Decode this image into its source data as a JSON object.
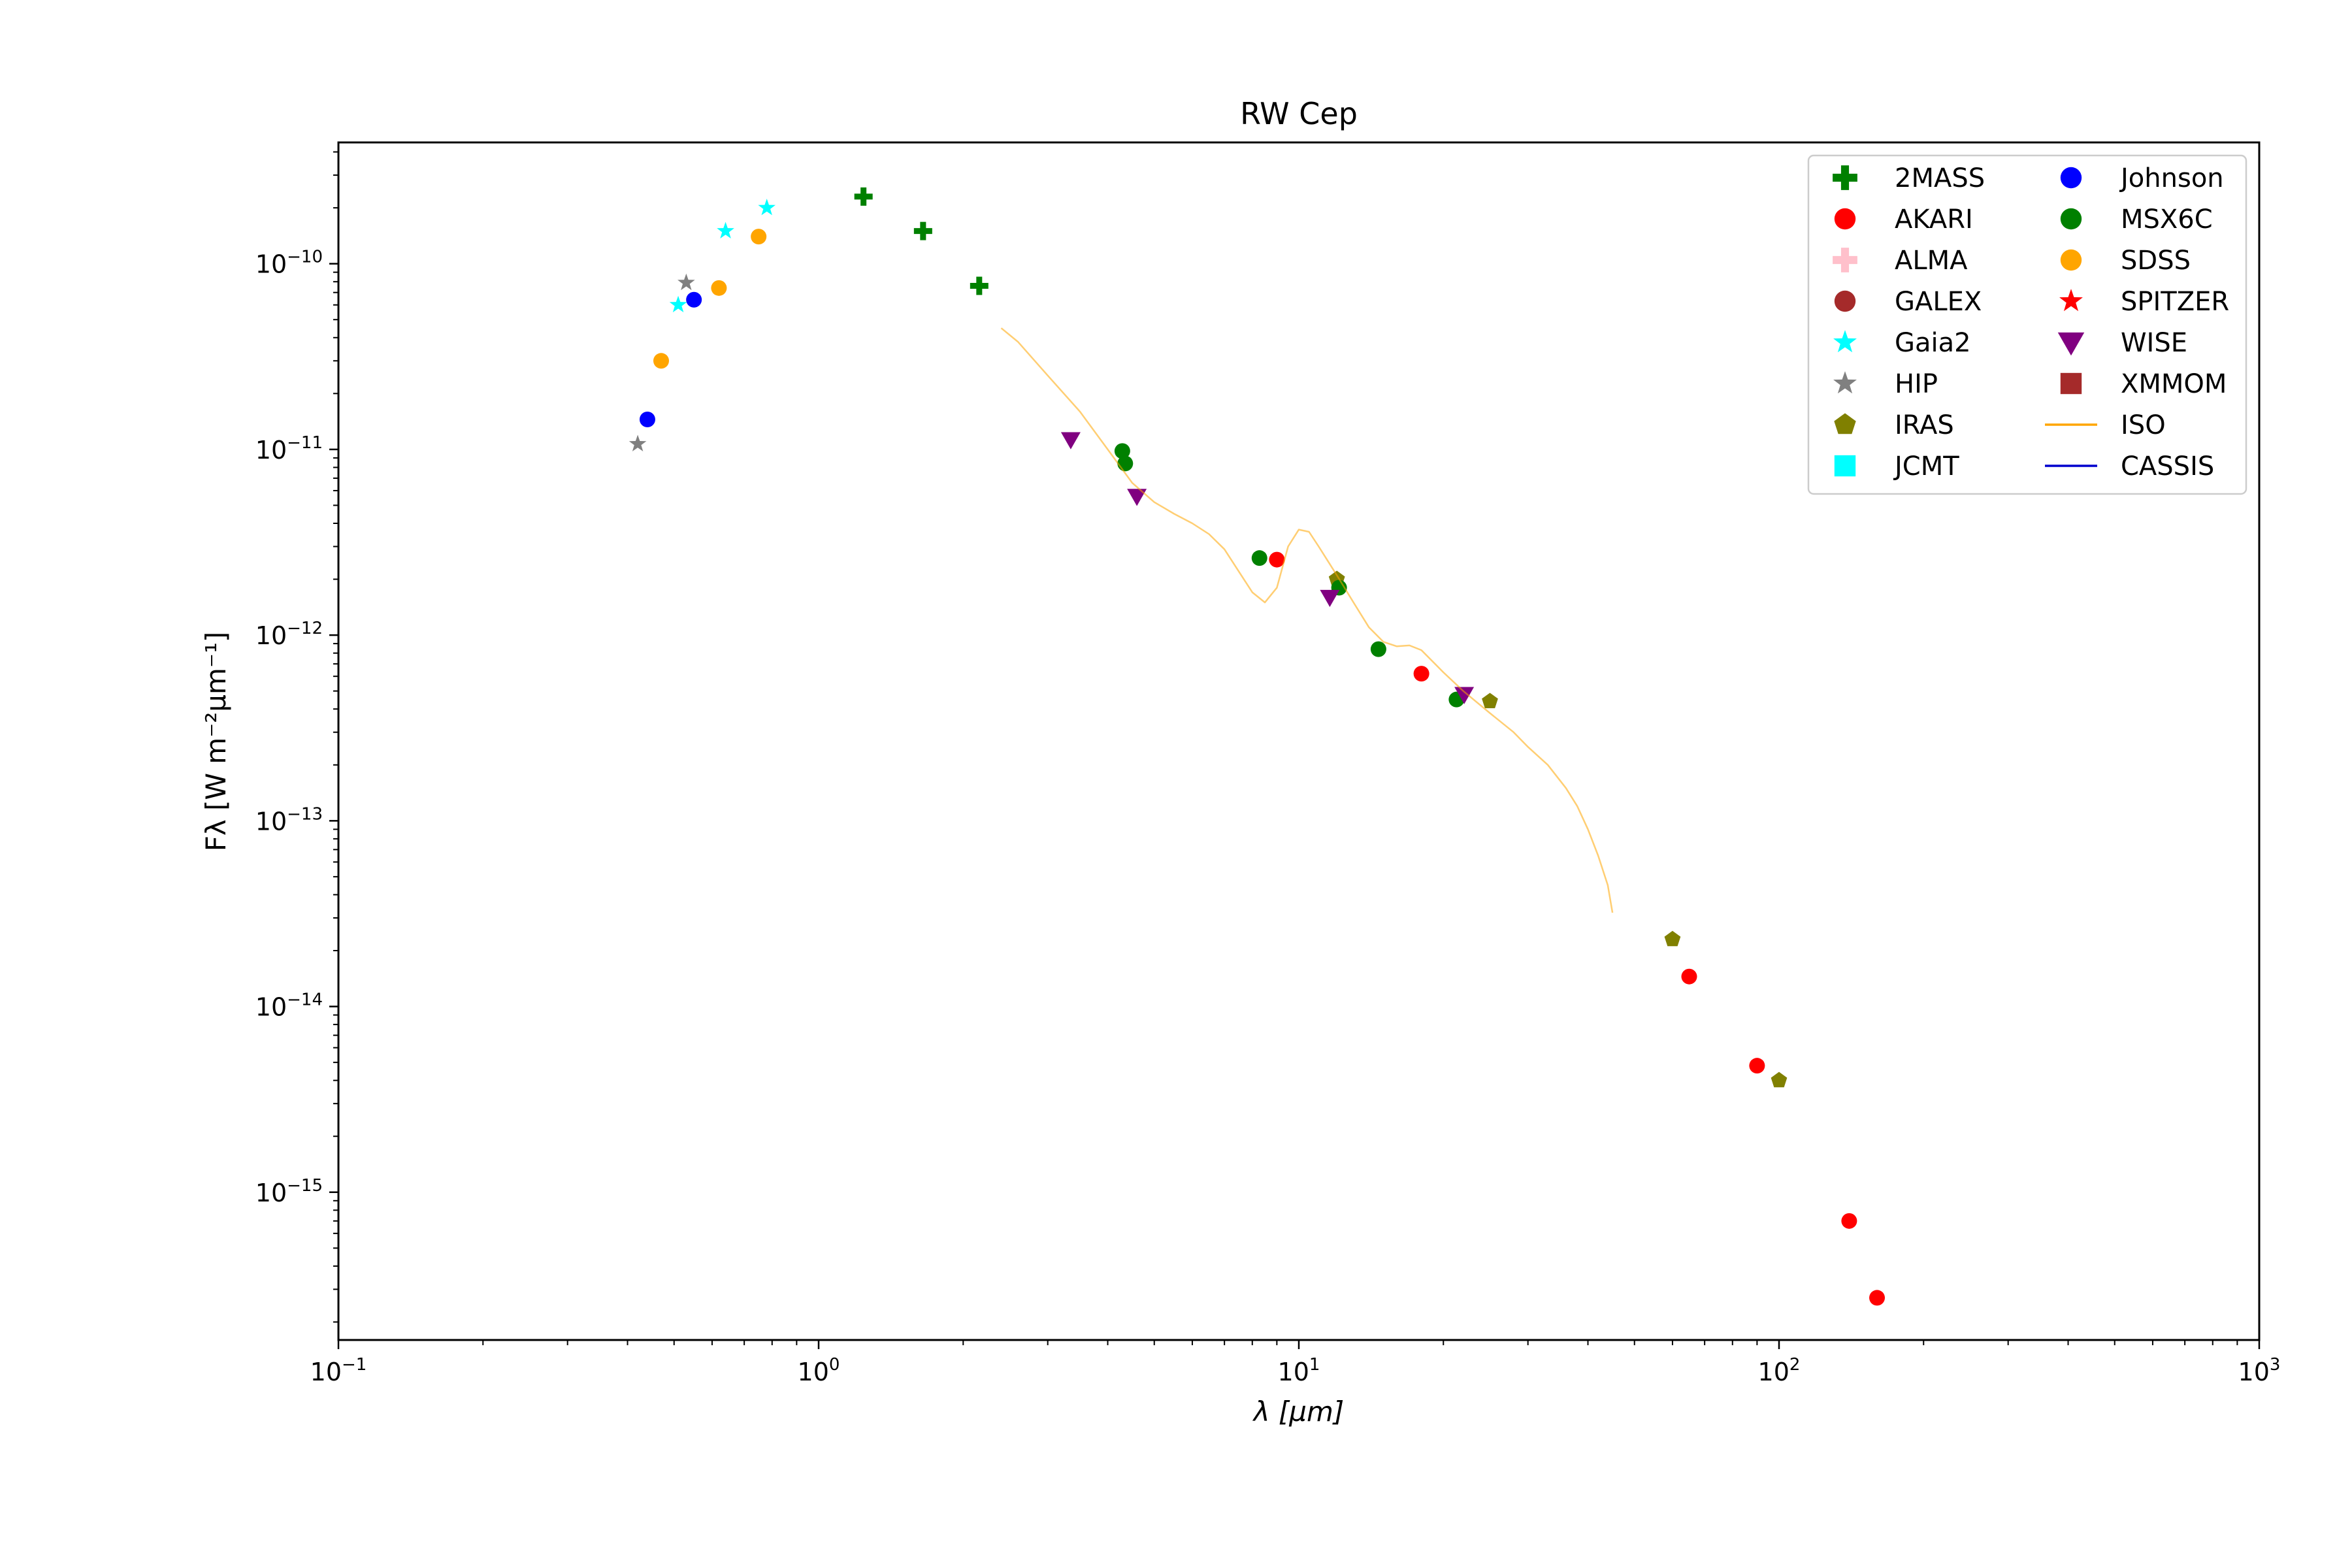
{
  "chart_data": {
    "type": "scatter",
    "title": "RW Cep",
    "xlabel": "λ [μm]",
    "ylabel": "Fλ [W m⁻²μm⁻¹]",
    "x_scale": "log",
    "y_scale": "log",
    "xlim": [
      0.1,
      1000
    ],
    "ylim": [
      1.6e-16,
      4.5e-10
    ],
    "grid": false,
    "legend_position": "top-right",
    "x_ticks": [
      {
        "value": 0.1,
        "base": "10",
        "exp": "−1"
      },
      {
        "value": 1,
        "base": "10",
        "exp": "0"
      },
      {
        "value": 10,
        "base": "10",
        "exp": "1"
      },
      {
        "value": 100,
        "base": "10",
        "exp": "2"
      },
      {
        "value": 1000,
        "base": "10",
        "exp": "3"
      }
    ],
    "y_ticks": [
      {
        "value": 1e-10,
        "base": "10",
        "exp": "−10"
      },
      {
        "value": 1e-11,
        "base": "10",
        "exp": "−11"
      },
      {
        "value": 1e-12,
        "base": "10",
        "exp": "−12"
      },
      {
        "value": 1e-13,
        "base": "10",
        "exp": "−13"
      },
      {
        "value": 1e-14,
        "base": "10",
        "exp": "−14"
      },
      {
        "value": 1e-15,
        "base": "10",
        "exp": "−15"
      }
    ],
    "series": [
      {
        "name": "2MASS",
        "marker": "plus",
        "color": "#008000",
        "points": [
          [
            1.24,
            2.3e-10
          ],
          [
            1.65,
            1.5e-10
          ],
          [
            2.16,
            7.6e-11
          ]
        ]
      },
      {
        "name": "AKARI",
        "marker": "circle",
        "color": "#ff0000",
        "points": [
          [
            9.0,
            2.55e-12
          ],
          [
            18.0,
            6.2e-13
          ],
          [
            65.0,
            1.45e-14
          ],
          [
            90.0,
            4.8e-15
          ],
          [
            140.0,
            7e-16
          ],
          [
            160.0,
            2.7e-16
          ]
        ]
      },
      {
        "name": "ALMA",
        "marker": "plus",
        "color": "#ffc0cb",
        "points": []
      },
      {
        "name": "GALEX",
        "marker": "circle",
        "color": "#a52a2a",
        "points": []
      },
      {
        "name": "Gaia2",
        "marker": "star",
        "color": "#00ffff",
        "points": [
          [
            0.51,
            6e-11
          ],
          [
            0.64,
            1.5e-10
          ],
          [
            0.78,
            2e-10
          ]
        ]
      },
      {
        "name": "HIP",
        "marker": "star",
        "color": "#808080",
        "points": [
          [
            0.42,
            1.07e-11
          ],
          [
            0.53,
            7.9e-11
          ]
        ]
      },
      {
        "name": "IRAS",
        "marker": "pentagon",
        "color": "#808000",
        "points": [
          [
            12.0,
            2e-12
          ],
          [
            25.0,
            4.4e-13
          ],
          [
            60.0,
            2.3e-14
          ],
          [
            100.0,
            4e-15
          ]
        ]
      },
      {
        "name": "JCMT",
        "marker": "square",
        "color": "#00ffff",
        "points": []
      },
      {
        "name": "Johnson",
        "marker": "circle",
        "color": "#0000ff",
        "points": [
          [
            0.44,
            1.45e-11
          ],
          [
            0.55,
            6.4e-11
          ]
        ]
      },
      {
        "name": "MSX6C",
        "marker": "circle",
        "color": "#008000",
        "points": [
          [
            4.29,
            9.8e-12
          ],
          [
            4.35,
            8.4e-12
          ],
          [
            8.28,
            2.6e-12
          ],
          [
            12.13,
            1.8e-12
          ],
          [
            14.65,
            8.4e-13
          ],
          [
            21.3,
            4.5e-13
          ]
        ]
      },
      {
        "name": "SDSS",
        "marker": "circle",
        "color": "#ffa500",
        "points": [
          [
            0.47,
            3e-11
          ],
          [
            0.62,
            7.4e-11
          ],
          [
            0.75,
            1.4e-10
          ]
        ]
      },
      {
        "name": "SPITZER",
        "marker": "star",
        "color": "#ff0000",
        "points": []
      },
      {
        "name": "WISE",
        "marker": "triangle-down",
        "color": "#800080",
        "points": [
          [
            3.35,
            1.13e-11
          ],
          [
            4.6,
            5.6e-12
          ],
          [
            11.6,
            1.6e-12
          ],
          [
            22.1,
            4.8e-13
          ]
        ]
      },
      {
        "name": "XMMOM",
        "marker": "square",
        "color": "#a52a2a",
        "points": []
      },
      {
        "name": "ISO",
        "marker": "line",
        "color": "#ffa500",
        "points": [
          [
            2.4,
            4.5e-11
          ],
          [
            2.6,
            3.8e-11
          ],
          [
            3.0,
            2.5e-11
          ],
          [
            3.5,
            1.6e-11
          ],
          [
            4.0,
            1e-11
          ],
          [
            4.5,
            6.6e-12
          ],
          [
            5.0,
            5.2e-12
          ],
          [
            5.5,
            4.5e-12
          ],
          [
            6.0,
            4e-12
          ],
          [
            6.5,
            3.5e-12
          ],
          [
            7.0,
            2.9e-12
          ],
          [
            7.5,
            2.2e-12
          ],
          [
            8.0,
            1.7e-12
          ],
          [
            8.5,
            1.5e-12
          ],
          [
            9.0,
            1.8e-12
          ],
          [
            9.5,
            3e-12
          ],
          [
            10.0,
            3.7e-12
          ],
          [
            10.5,
            3.6e-12
          ],
          [
            11.0,
            3e-12
          ],
          [
            12.0,
            2.1e-12
          ],
          [
            13.0,
            1.5e-12
          ],
          [
            14.0,
            1.1e-12
          ],
          [
            15.0,
            9.2e-13
          ],
          [
            16.0,
            8.7e-13
          ],
          [
            17.0,
            8.8e-13
          ],
          [
            18.0,
            8.3e-13
          ],
          [
            20.0,
            6.3e-13
          ],
          [
            22.0,
            5e-13
          ],
          [
            25.0,
            3.8e-13
          ],
          [
            28.0,
            3e-13
          ],
          [
            30.0,
            2.5e-13
          ],
          [
            33.0,
            2e-13
          ],
          [
            36.0,
            1.5e-13
          ],
          [
            38.0,
            1.2e-13
          ],
          [
            40.0,
            9e-14
          ],
          [
            42.0,
            6.5e-14
          ],
          [
            44.0,
            4.5e-14
          ],
          [
            45.0,
            3.2e-14
          ]
        ]
      },
      {
        "name": "CASSIS",
        "marker": "line",
        "color": "#0000cd",
        "points": []
      }
    ]
  }
}
